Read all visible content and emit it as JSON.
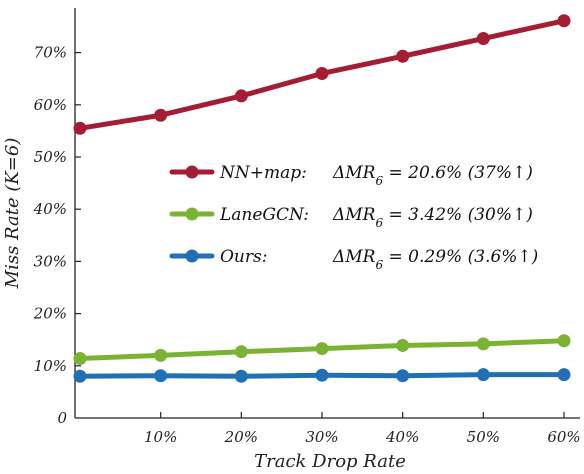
{
  "chart_data": {
    "type": "line",
    "xlabel": "Track Drop Rate",
    "ylabel": "Miss Rate (K=6)",
    "x": [
      0,
      10,
      20,
      30,
      40,
      50,
      60
    ],
    "x_tick_values": [
      10,
      20,
      30,
      40,
      50,
      60
    ],
    "x_tick_labels": [
      "10%",
      "20%",
      "30%",
      "40%",
      "50%",
      "60%"
    ],
    "xlim": [
      0,
      60
    ],
    "y_tick_values": [
      0,
      10,
      20,
      30,
      40,
      50,
      60,
      70
    ],
    "y_tick_labels": [
      "0",
      "10%",
      "20%",
      "30%",
      "40%",
      "50%",
      "60%",
      "70%"
    ],
    "ylim": [
      0,
      78
    ],
    "grid": false,
    "legend_position": "center-right",
    "series": [
      {
        "name": "NN+map:",
        "color": "#a51d33",
        "values": [
          55.5,
          58.0,
          61.7,
          66.0,
          69.3,
          72.7,
          76.1
        ],
        "legend": {
          "metric": "ΔMR",
          "sub": "6",
          "value": " = 20.6% (37%↑)"
        }
      },
      {
        "name": "LaneGCN:",
        "color": "#7ab232",
        "values": [
          11.4,
          12.0,
          12.7,
          13.3,
          13.9,
          14.2,
          14.8
        ],
        "legend": {
          "metric": "ΔMR",
          "sub": "6",
          "value": " = 3.42% (30%↑)"
        }
      },
      {
        "name": "Ours:",
        "color": "#2170b5",
        "values": [
          8.0,
          8.1,
          8.0,
          8.2,
          8.1,
          8.3,
          8.3
        ],
        "legend": {
          "metric": "ΔMR",
          "sub": "6",
          "value": " = 0.29% (3.6%↑)"
        }
      }
    ]
  }
}
